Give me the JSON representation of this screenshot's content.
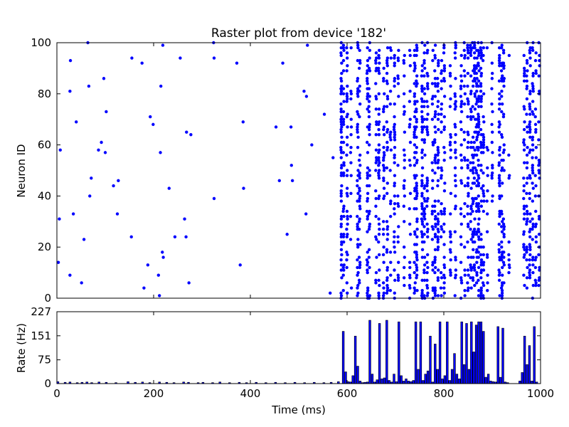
{
  "chart_data": [
    {
      "type": "scatter",
      "title": "Raster plot from device '182'",
      "xlabel": "",
      "ylabel": "Neuron ID",
      "xlim": [
        0,
        1000
      ],
      "ylim": [
        0,
        100
      ],
      "yticks": [
        "0",
        "20",
        "40",
        "60",
        "80",
        "100"
      ],
      "color": "#0000ff",
      "points": [
        [
          3,
          14
        ],
        [
          5,
          31
        ],
        [
          7,
          58
        ],
        [
          27,
          9
        ],
        [
          27,
          81
        ],
        [
          28,
          93
        ],
        [
          34,
          33
        ],
        [
          40,
          69
        ],
        [
          51,
          6
        ],
        [
          56,
          23
        ],
        [
          64,
          100
        ],
        [
          66,
          83
        ],
        [
          68,
          40
        ],
        [
          71,
          47
        ],
        [
          86,
          58
        ],
        [
          92,
          61
        ],
        [
          97,
          86
        ],
        [
          100,
          57
        ],
        [
          102,
          73
        ],
        [
          117,
          44
        ],
        [
          125,
          33
        ],
        [
          127,
          46
        ],
        [
          154,
          24
        ],
        [
          155,
          94
        ],
        [
          176,
          92
        ],
        [
          180,
          4
        ],
        [
          188,
          13
        ],
        [
          193,
          71
        ],
        [
          199,
          68
        ],
        [
          210,
          9
        ],
        [
          212,
          1
        ],
        [
          214,
          57
        ],
        [
          215,
          83
        ],
        [
          218,
          18
        ],
        [
          219,
          99
        ],
        [
          220,
          16
        ],
        [
          232,
          43
        ],
        [
          244,
          24
        ],
        [
          255,
          94
        ],
        [
          264,
          31
        ],
        [
          267,
          24
        ],
        [
          268,
          65
        ],
        [
          273,
          6
        ],
        [
          277,
          64
        ],
        [
          324,
          100
        ],
        [
          325,
          94
        ],
        [
          325,
          39
        ],
        [
          372,
          92
        ],
        [
          379,
          13
        ],
        [
          385,
          69
        ],
        [
          386,
          43
        ],
        [
          453,
          67
        ],
        [
          460,
          46
        ],
        [
          467,
          92
        ],
        [
          476,
          25
        ],
        [
          484,
          67
        ],
        [
          485,
          52
        ],
        [
          487,
          46
        ],
        [
          511,
          81
        ],
        [
          515,
          33
        ],
        [
          516,
          79
        ],
        [
          518,
          99
        ],
        [
          527,
          60
        ],
        [
          553,
          72
        ],
        [
          565,
          2
        ],
        [
          571,
          55
        ]
      ],
      "bands": [
        {
          "x": 588,
          "n": 80
        },
        {
          "x": 593,
          "n": 35
        },
        {
          "x": 600,
          "n": 45
        },
        {
          "x": 608,
          "n": 15
        },
        {
          "x": 622,
          "n": 45
        },
        {
          "x": 626,
          "n": 40
        },
        {
          "x": 642,
          "n": 50
        },
        {
          "x": 646,
          "n": 30
        },
        {
          "x": 660,
          "n": 35
        },
        {
          "x": 666,
          "n": 45
        },
        {
          "x": 676,
          "n": 48
        },
        {
          "x": 683,
          "n": 40
        },
        {
          "x": 690,
          "n": 20
        },
        {
          "x": 698,
          "n": 50
        },
        {
          "x": 706,
          "n": 20
        },
        {
          "x": 718,
          "n": 25
        },
        {
          "x": 730,
          "n": 25
        },
        {
          "x": 740,
          "n": 50
        },
        {
          "x": 744,
          "n": 55
        },
        {
          "x": 755,
          "n": 60
        },
        {
          "x": 760,
          "n": 40
        },
        {
          "x": 766,
          "n": 45
        },
        {
          "x": 777,
          "n": 30
        },
        {
          "x": 782,
          "n": 55
        },
        {
          "x": 788,
          "n": 45
        },
        {
          "x": 795,
          "n": 30
        },
        {
          "x": 801,
          "n": 40
        },
        {
          "x": 814,
          "n": 25
        },
        {
          "x": 824,
          "n": 48
        },
        {
          "x": 836,
          "n": 35
        },
        {
          "x": 843,
          "n": 25
        },
        {
          "x": 850,
          "n": 40
        },
        {
          "x": 856,
          "n": 40
        },
        {
          "x": 860,
          "n": 35
        },
        {
          "x": 864,
          "n": 45
        },
        {
          "x": 868,
          "n": 50
        },
        {
          "x": 872,
          "n": 55
        },
        {
          "x": 877,
          "n": 55
        },
        {
          "x": 882,
          "n": 40
        },
        {
          "x": 890,
          "n": 15
        },
        {
          "x": 900,
          "n": 20
        },
        {
          "x": 915,
          "n": 55
        },
        {
          "x": 920,
          "n": 50
        },
        {
          "x": 924,
          "n": 30
        },
        {
          "x": 935,
          "n": 10
        },
        {
          "x": 966,
          "n": 35
        },
        {
          "x": 972,
          "n": 45
        },
        {
          "x": 978,
          "n": 45
        },
        {
          "x": 984,
          "n": 40
        },
        {
          "x": 990,
          "n": 35
        },
        {
          "x": 997,
          "n": 30
        }
      ]
    },
    {
      "type": "bar",
      "title": "",
      "xlabel": "Time (ms)",
      "ylabel": "Rate (Hz)",
      "xlim": [
        0,
        1000
      ],
      "ylim": [
        0,
        227
      ],
      "xticks": [
        "0",
        "200",
        "400",
        "600",
        "800",
        "1000"
      ],
      "yticks": [
        "0",
        "75",
        "151",
        "227"
      ],
      "bin_width": 5,
      "color": "#0000ff",
      "bars": [
        [
          580,
          6
        ],
        [
          590,
          165
        ],
        [
          595,
          37
        ],
        [
          600,
          6
        ],
        [
          605,
          5
        ],
        [
          610,
          25
        ],
        [
          615,
          150
        ],
        [
          620,
          55
        ],
        [
          625,
          8
        ],
        [
          630,
          3
        ],
        [
          635,
          4
        ],
        [
          640,
          5
        ],
        [
          645,
          200
        ],
        [
          650,
          30
        ],
        [
          655,
          5
        ],
        [
          660,
          12
        ],
        [
          665,
          190
        ],
        [
          670,
          15
        ],
        [
          675,
          18
        ],
        [
          680,
          200
        ],
        [
          685,
          10
        ],
        [
          690,
          5
        ],
        [
          695,
          30
        ],
        [
          700,
          6
        ],
        [
          705,
          195
        ],
        [
          710,
          25
        ],
        [
          715,
          8
        ],
        [
          720,
          15
        ],
        [
          725,
          8
        ],
        [
          730,
          6
        ],
        [
          735,
          10
        ],
        [
          740,
          195
        ],
        [
          745,
          45
        ],
        [
          750,
          195
        ],
        [
          755,
          10
        ],
        [
          760,
          30
        ],
        [
          765,
          40
        ],
        [
          770,
          150
        ],
        [
          775,
          5
        ],
        [
          780,
          125
        ],
        [
          785,
          45
        ],
        [
          790,
          195
        ],
        [
          795,
          15
        ],
        [
          800,
          25
        ],
        [
          805,
          195
        ],
        [
          810,
          10
        ],
        [
          815,
          45
        ],
        [
          820,
          95
        ],
        [
          825,
          30
        ],
        [
          830,
          15
        ],
        [
          835,
          195
        ],
        [
          840,
          60
        ],
        [
          845,
          190
        ],
        [
          850,
          45
        ],
        [
          855,
          195
        ],
        [
          860,
          100
        ],
        [
          865,
          185
        ],
        [
          870,
          195
        ],
        [
          875,
          195
        ],
        [
          880,
          165
        ],
        [
          885,
          20
        ],
        [
          890,
          30
        ],
        [
          895,
          8
        ],
        [
          900,
          6
        ],
        [
          905,
          5
        ],
        [
          910,
          180
        ],
        [
          915,
          20
        ],
        [
          920,
          175
        ],
        [
          925,
          5
        ],
        [
          930,
          3
        ],
        [
          955,
          8
        ],
        [
          960,
          35
        ],
        [
          965,
          150
        ],
        [
          970,
          60
        ],
        [
          975,
          120
        ],
        [
          980,
          8
        ],
        [
          985,
          180
        ],
        [
          990,
          5
        ]
      ],
      "background_bars": [
        [
          0,
          6
        ],
        [
          15,
          4
        ],
        [
          25,
          5
        ],
        [
          40,
          3
        ],
        [
          50,
          4
        ],
        [
          60,
          5
        ],
        [
          70,
          3
        ],
        [
          85,
          5
        ],
        [
          100,
          4
        ],
        [
          120,
          3
        ],
        [
          145,
          6
        ],
        [
          160,
          4
        ],
        [
          175,
          5
        ],
        [
          190,
          3
        ],
        [
          210,
          5
        ],
        [
          225,
          4
        ],
        [
          240,
          3
        ],
        [
          260,
          5
        ],
        [
          270,
          4
        ],
        [
          290,
          3
        ],
        [
          300,
          4
        ],
        [
          320,
          3
        ],
        [
          335,
          5
        ],
        [
          355,
          3
        ],
        [
          375,
          4
        ],
        [
          390,
          3
        ],
        [
          410,
          4
        ],
        [
          430,
          3
        ],
        [
          450,
          4
        ],
        [
          470,
          3
        ],
        [
          490,
          4
        ],
        [
          510,
          3
        ],
        [
          530,
          4
        ],
        [
          550,
          3
        ],
        [
          565,
          4
        ]
      ]
    }
  ]
}
